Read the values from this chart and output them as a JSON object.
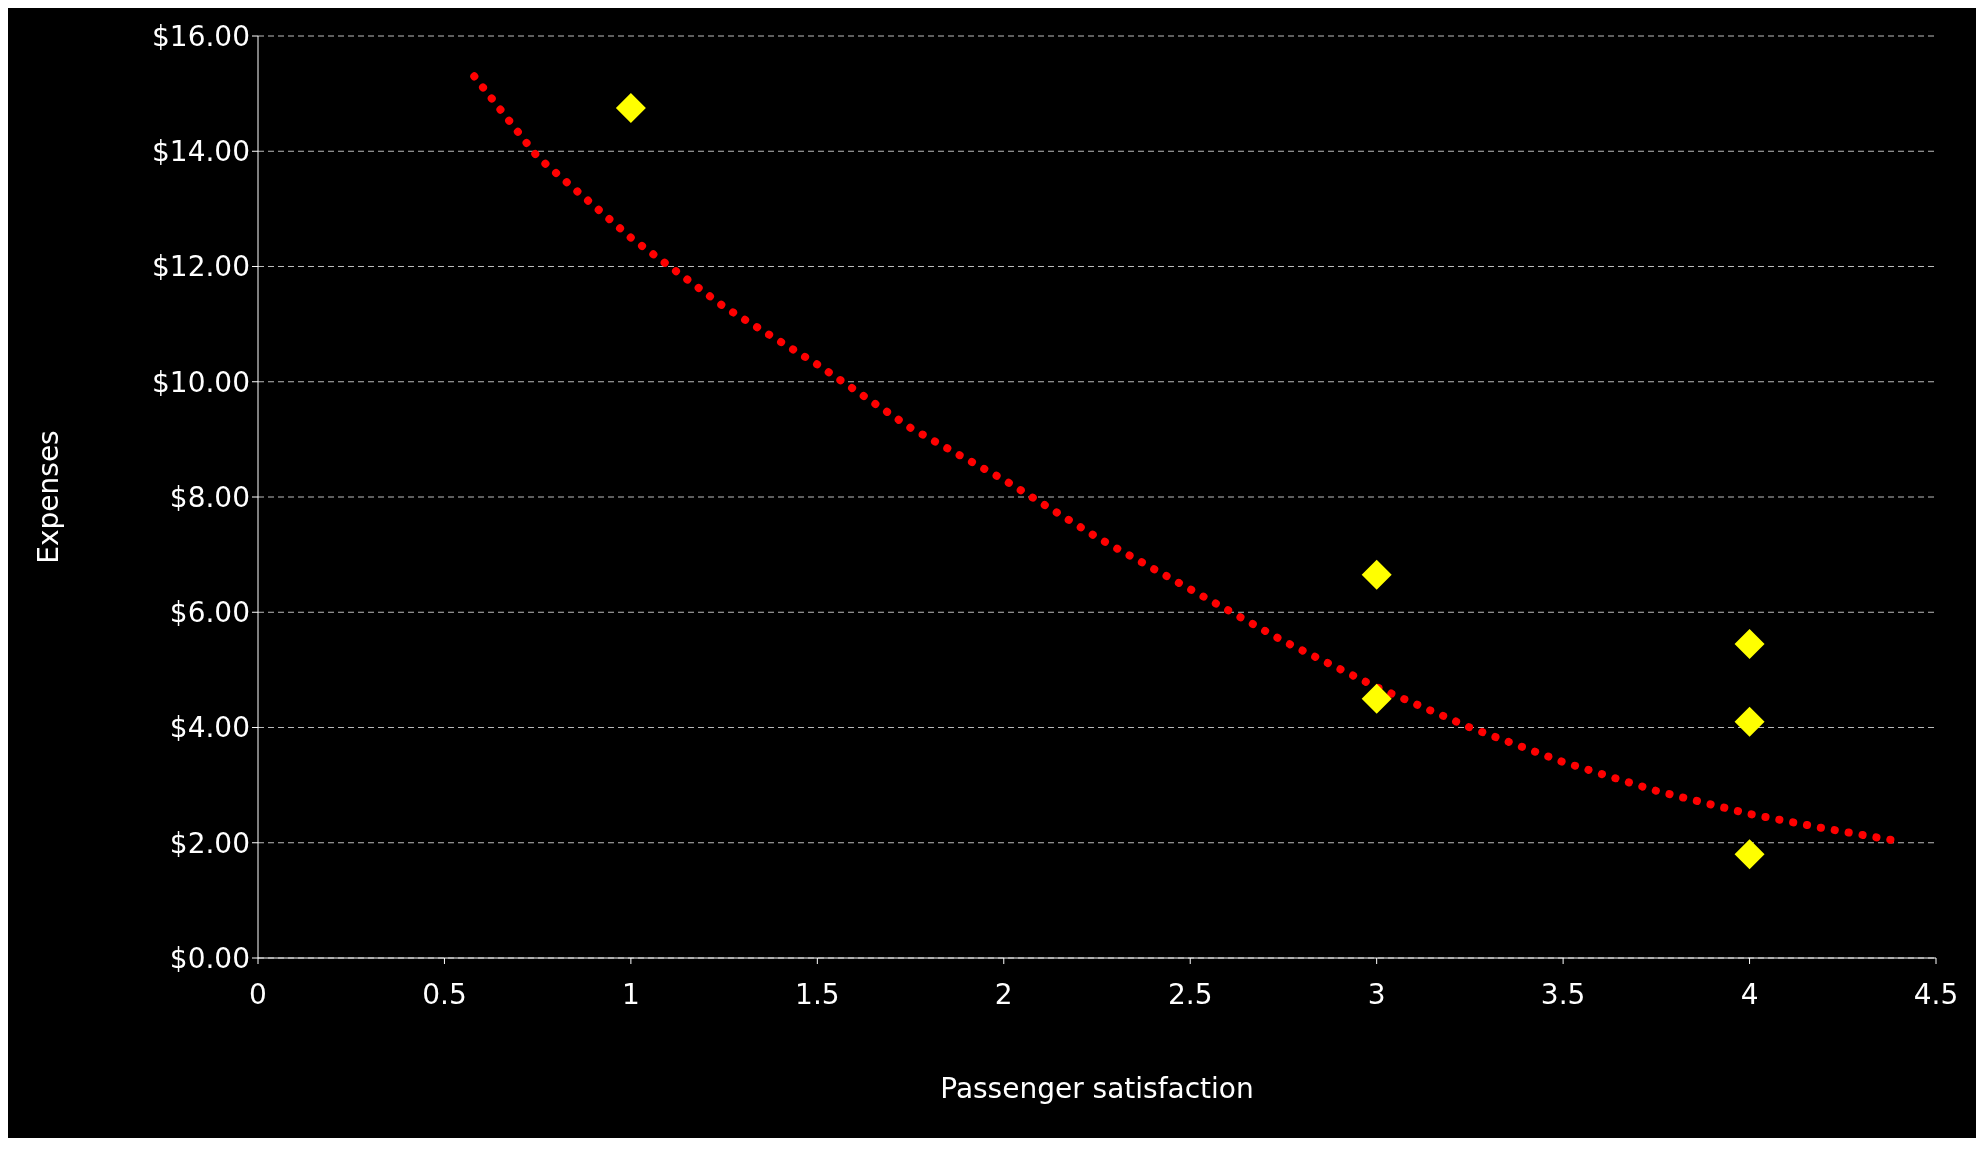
{
  "chart_data": {
    "type": "scatter",
    "xlabel": "Passenger satisfaction",
    "ylabel": "Expenses",
    "series": [
      {
        "color": "#ffff00",
        "marker": "diamond",
        "x": [
          1,
          3,
          3,
          4,
          4,
          4
        ],
        "values": [
          14.75,
          6.65,
          4.5,
          5.45,
          4.1,
          1.8
        ]
      },
      {
        "type": "line",
        "color": "#ff0000",
        "marker": "none",
        "line_style": "dotted",
        "x": [
          0.58,
          0.75,
          1,
          1.25,
          1.5,
          1.75,
          2,
          2.25,
          2.5,
          2.75,
          3,
          3.25,
          3.5,
          3.75,
          4,
          4.2,
          4.38
        ],
        "values": [
          15.3,
          13.9,
          12.5,
          11.3,
          10.3,
          9.2,
          8.3,
          7.3,
          6.4,
          5.5,
          4.7,
          4,
          3.4,
          2.9,
          2.5,
          2.25,
          2.05
        ]
      }
    ],
    "xlim": [
      0,
      4.5
    ],
    "xticks": [
      0,
      0.5,
      1,
      1.5,
      2,
      2.5,
      3,
      3.5,
      4,
      4.5
    ],
    "ylim": [
      0,
      16
    ],
    "yticks": [
      {
        "value": 0,
        "label": "$0.00"
      },
      {
        "value": 2,
        "label": "$2.00"
      },
      {
        "value": 4,
        "label": "$4.00"
      },
      {
        "value": 6,
        "label": "$6.00"
      },
      {
        "value": 8,
        "label": "$8.00"
      },
      {
        "value": 10,
        "label": "$10.00"
      },
      {
        "value": 12,
        "label": "$12.00"
      },
      {
        "value": 14,
        "label": "$14.00"
      },
      {
        "value": 16,
        "label": "$16.00"
      }
    ],
    "grid": "y"
  }
}
